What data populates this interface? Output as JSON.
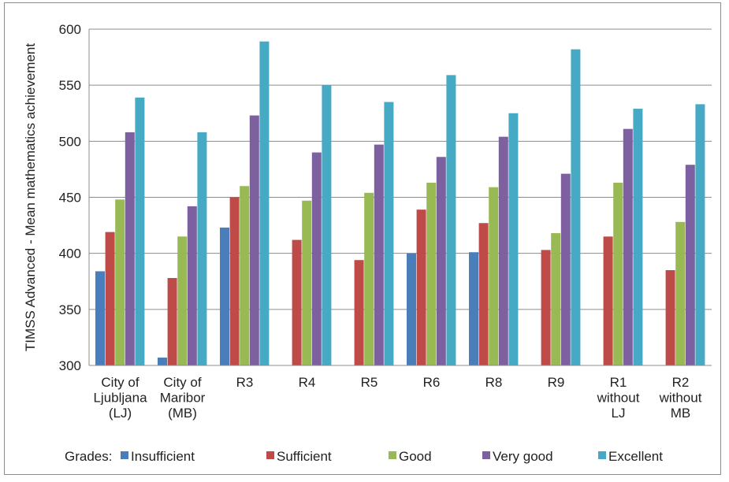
{
  "chart_data": {
    "type": "bar",
    "ylabel": "TIMSS Advanced - Mean mathematics achievement",
    "ylim": [
      300,
      600
    ],
    "yticks": [
      "300",
      "350",
      "400",
      "450",
      "500",
      "550",
      "600"
    ],
    "grid": true,
    "legend_position": "bottom",
    "legend_prefix": "Grades:",
    "categories": [
      [
        "City of",
        "Ljubljana",
        "(LJ)"
      ],
      [
        "City of",
        "Maribor",
        "(MB)"
      ],
      [
        "R3"
      ],
      [
        "R4"
      ],
      [
        "R5"
      ],
      [
        "R6"
      ],
      [
        "R8"
      ],
      [
        "R9"
      ],
      [
        "R1",
        "without",
        "LJ"
      ],
      [
        "R2",
        "without",
        "MB"
      ]
    ],
    "series": [
      {
        "name": "Insufficient",
        "color": "#4a7ebb",
        "values": [
          384,
          307,
          423,
          null,
          null,
          400,
          401,
          null,
          null,
          null
        ]
      },
      {
        "name": "Sufficient",
        "color": "#be4b48",
        "values": [
          419,
          378,
          450,
          412,
          394,
          439,
          427,
          403,
          415,
          385
        ]
      },
      {
        "name": "Good",
        "color": "#98b954",
        "values": [
          448,
          415,
          460,
          447,
          454,
          463,
          459,
          418,
          463,
          428
        ]
      },
      {
        "name": "Very good",
        "color": "#7d60a0",
        "values": [
          508,
          442,
          523,
          490,
          497,
          486,
          504,
          471,
          511,
          479
        ]
      },
      {
        "name": "Excellent",
        "color": "#46aac5",
        "values": [
          539,
          508,
          589,
          550,
          535,
          559,
          525,
          582,
          529,
          533
        ]
      }
    ]
  }
}
